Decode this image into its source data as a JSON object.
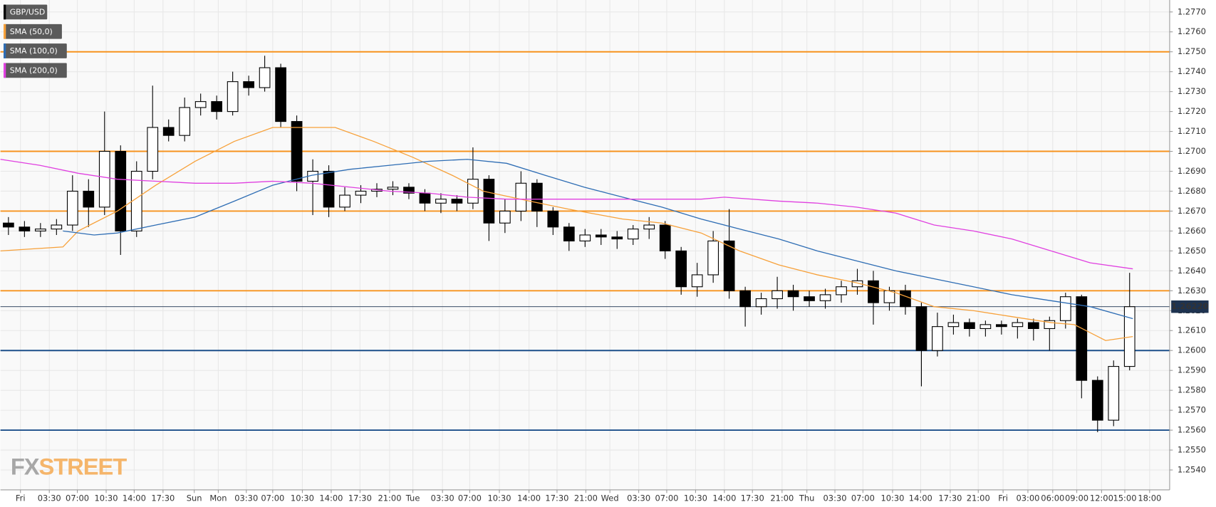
{
  "chart_data": {
    "type": "candlestick",
    "watermark": [
      "FX",
      "STREET"
    ],
    "xlim": [
      0,
      146
    ],
    "xticks": [
      {
        "value": 2.5,
        "label": "Fri"
      },
      {
        "value": 6.1,
        "label": "03:30"
      },
      {
        "value": 9.6,
        "label": "07:00"
      },
      {
        "value": 13.2,
        "label": "10:30"
      },
      {
        "value": 16.7,
        "label": "14:00"
      },
      {
        "value": 20.3,
        "label": "17:30"
      },
      {
        "value": 24.2,
        "label": "Sun"
      },
      {
        "value": 27.2,
        "label": "Mon"
      },
      {
        "value": 30.7,
        "label": "03:30"
      },
      {
        "value": 34.0,
        "label": "07:00"
      },
      {
        "value": 37.7,
        "label": "10:30"
      },
      {
        "value": 41.3,
        "label": "14:00"
      },
      {
        "value": 44.9,
        "label": "17:30"
      },
      {
        "value": 48.6,
        "label": "21:00"
      },
      {
        "value": 51.5,
        "label": "Tue"
      },
      {
        "value": 55.2,
        "label": "03:30"
      },
      {
        "value": 58.6,
        "label": "07:00"
      },
      {
        "value": 62.3,
        "label": "10:30"
      },
      {
        "value": 66.0,
        "label": "14:00"
      },
      {
        "value": 69.5,
        "label": "17:30"
      },
      {
        "value": 73.1,
        "label": "21:00"
      },
      {
        "value": 76.1,
        "label": "Wed"
      },
      {
        "value": 79.7,
        "label": "03:30"
      },
      {
        "value": 83.2,
        "label": "07:00"
      },
      {
        "value": 86.8,
        "label": "10:30"
      },
      {
        "value": 90.4,
        "label": "14:00"
      },
      {
        "value": 93.9,
        "label": "17:30"
      },
      {
        "value": 97.6,
        "label": "21:00"
      },
      {
        "value": 100.7,
        "label": "Thu"
      },
      {
        "value": 104.2,
        "label": "03:30"
      },
      {
        "value": 107.7,
        "label": "07:00"
      },
      {
        "value": 111.4,
        "label": "10:30"
      },
      {
        "value": 114.9,
        "label": "14:00"
      },
      {
        "value": 118.6,
        "label": "17:30"
      },
      {
        "value": 122.1,
        "label": "21:00"
      },
      {
        "value": 125.2,
        "label": "Fri"
      },
      {
        "value": 128.3,
        "label": "03:00"
      },
      {
        "value": 131.4,
        "label": "06:00"
      },
      {
        "value": 134.4,
        "label": "09:00"
      },
      {
        "value": 137.5,
        "label": "12:00"
      },
      {
        "value": 140.4,
        "label": "15:00"
      },
      {
        "value": 143.5,
        "label": "18:00"
      }
    ],
    "ylim": [
      1.253,
      1.2776
    ],
    "yticks": [
      {
        "value": 1.277,
        "label": "1.2770"
      },
      {
        "value": 1.276,
        "label": "1.2760"
      },
      {
        "value": 1.275,
        "label": "1.2750"
      },
      {
        "value": 1.274,
        "label": "1.2740"
      },
      {
        "value": 1.273,
        "label": "1.2730"
      },
      {
        "value": 1.272,
        "label": "1.2720"
      },
      {
        "value": 1.271,
        "label": "1.2710"
      },
      {
        "value": 1.27,
        "label": "1.2700"
      },
      {
        "value": 1.269,
        "label": "1.2690"
      },
      {
        "value": 1.268,
        "label": "1.2680"
      },
      {
        "value": 1.267,
        "label": "1.2670"
      },
      {
        "value": 1.266,
        "label": "1.2660"
      },
      {
        "value": 1.265,
        "label": "1.2650"
      },
      {
        "value": 1.264,
        "label": "1.2640"
      },
      {
        "value": 1.263,
        "label": "1.2630"
      },
      {
        "value": 1.262,
        "label": "1.2620"
      },
      {
        "value": 1.261,
        "label": "1.2610"
      },
      {
        "value": 1.26,
        "label": "1.2600"
      },
      {
        "value": 1.259,
        "label": "1.2590"
      },
      {
        "value": 1.258,
        "label": "1.2580"
      },
      {
        "value": 1.257,
        "label": "1.2570"
      },
      {
        "value": 1.256,
        "label": "1.2560"
      },
      {
        "value": 1.255,
        "label": "1.2550"
      },
      {
        "value": 1.254,
        "label": "1.2540"
      }
    ],
    "grid": true,
    "levels": [
      {
        "value": 1.275,
        "color": "#f7931e"
      },
      {
        "value": 1.27,
        "color": "#f7931e"
      },
      {
        "value": 1.267,
        "color": "#f7931e"
      },
      {
        "value": 1.263,
        "color": "#f7931e"
      },
      {
        "value": 1.26,
        "color": "#1c4f8a"
      },
      {
        "value": 1.256,
        "color": "#1c4f8a"
      }
    ],
    "last_price": {
      "value": 1.2622,
      "label": "1.26220",
      "color": "#1e3350"
    },
    "legend": "top-left",
    "series": [
      {
        "name": "GBP/USD",
        "type": "candlestick",
        "up_color": "#ffffff",
        "down_color": "#000000",
        "x": [
          1,
          3,
          5,
          7,
          9,
          11,
          13,
          15,
          17,
          19,
          21,
          23,
          25,
          27,
          29,
          31,
          33,
          35,
          37,
          39,
          41,
          43,
          45,
          47,
          49,
          51,
          53,
          55,
          57,
          59,
          61,
          63,
          65,
          67,
          69,
          71,
          73,
          75,
          77,
          79,
          81,
          83,
          85,
          87,
          89,
          91,
          93,
          95,
          97,
          99,
          101,
          103,
          105,
          107,
          109,
          111,
          113,
          115,
          117,
          119,
          121,
          123,
          125,
          127,
          129,
          131,
          133,
          135,
          137,
          139,
          141
        ],
        "open": [
          1.2664,
          1.2662,
          1.266,
          1.2661,
          1.2663,
          1.268,
          1.2672,
          1.27,
          1.266,
          1.269,
          1.2712,
          1.2708,
          1.2722,
          1.2725,
          1.272,
          1.2735,
          1.2732,
          1.2742,
          1.2715,
          1.2685,
          1.269,
          1.2672,
          1.2678,
          1.268,
          1.2681,
          1.2682,
          1.2679,
          1.2674,
          1.2676,
          1.2674,
          1.2686,
          1.2664,
          1.267,
          1.2684,
          1.267,
          1.2662,
          1.2655,
          1.2658,
          1.2657,
          1.2656,
          1.2661,
          1.2663,
          1.265,
          1.2632,
          1.2638,
          1.2655,
          1.263,
          1.2622,
          1.2626,
          1.263,
          1.2627,
          1.2625,
          1.2628,
          1.2632,
          1.2635,
          1.2624,
          1.263,
          1.2622,
          1.26,
          1.2612,
          1.2614,
          1.2611,
          1.2613,
          1.2612,
          1.2614,
          1.2611,
          1.2615,
          1.2627,
          1.2585,
          1.2565,
          1.2592
        ],
        "high": [
          1.2667,
          1.2665,
          1.2664,
          1.2666,
          1.2688,
          1.2686,
          1.272,
          1.2703,
          1.2695,
          1.2733,
          1.2716,
          1.2727,
          1.2729,
          1.2728,
          1.274,
          1.2738,
          1.2748,
          1.2744,
          1.2718,
          1.2696,
          1.2693,
          1.2682,
          1.2683,
          1.2684,
          1.2685,
          1.2684,
          1.2681,
          1.2679,
          1.2678,
          1.2702,
          1.2688,
          1.2676,
          1.269,
          1.2686,
          1.2672,
          1.2664,
          1.2661,
          1.2661,
          1.266,
          1.2663,
          1.2667,
          1.2665,
          1.2652,
          1.2644,
          1.266,
          1.2671,
          1.2632,
          1.2629,
          1.2637,
          1.2633,
          1.263,
          1.2631,
          1.2635,
          1.2641,
          1.264,
          1.2632,
          1.2633,
          1.2624,
          1.2619,
          1.2618,
          1.2616,
          1.2615,
          1.2615,
          1.2616,
          1.2616,
          1.2617,
          1.2629,
          1.2628,
          1.2587,
          1.2595,
          1.2639
        ],
        "low": [
          1.2658,
          1.2657,
          1.2657,
          1.2658,
          1.266,
          1.2662,
          1.2668,
          1.2648,
          1.2657,
          1.2686,
          1.2705,
          1.2705,
          1.2718,
          1.2716,
          1.2718,
          1.2728,
          1.273,
          1.2712,
          1.268,
          1.2668,
          1.2667,
          1.267,
          1.2674,
          1.2677,
          1.2678,
          1.2676,
          1.267,
          1.2669,
          1.267,
          1.2671,
          1.2655,
          1.2659,
          1.2665,
          1.2662,
          1.2658,
          1.265,
          1.2652,
          1.2653,
          1.2651,
          1.2653,
          1.2656,
          1.2646,
          1.2628,
          1.2627,
          1.2634,
          1.2626,
          1.2612,
          1.2618,
          1.2621,
          1.262,
          1.2622,
          1.2621,
          1.2624,
          1.2628,
          1.2613,
          1.262,
          1.2618,
          1.2582,
          1.2597,
          1.2608,
          1.2607,
          1.2607,
          1.2608,
          1.2606,
          1.2605,
          1.26,
          1.2611,
          1.2576,
          1.2559,
          1.2562,
          1.259
        ],
        "close": [
          1.2662,
          1.266,
          1.2661,
          1.2663,
          1.268,
          1.2672,
          1.27,
          1.266,
          1.269,
          1.2712,
          1.2708,
          1.2722,
          1.2725,
          1.272,
          1.2735,
          1.2732,
          1.2742,
          1.2715,
          1.2685,
          1.269,
          1.2672,
          1.2678,
          1.268,
          1.2681,
          1.2682,
          1.2679,
          1.2674,
          1.2676,
          1.2674,
          1.2686,
          1.2664,
          1.267,
          1.2684,
          1.267,
          1.2662,
          1.2655,
          1.2658,
          1.2657,
          1.2656,
          1.2661,
          1.2663,
          1.265,
          1.2632,
          1.2638,
          1.2655,
          1.263,
          1.2622,
          1.2626,
          1.263,
          1.2627,
          1.2625,
          1.2628,
          1.2632,
          1.2635,
          1.2624,
          1.263,
          1.2622,
          1.26,
          1.2612,
          1.2614,
          1.2611,
          1.2613,
          1.2612,
          1.2614,
          1.2611,
          1.2615,
          1.2627,
          1.2585,
          1.2565,
          1.2592,
          1.2622
        ]
      },
      {
        "name": "SMA (50,0)",
        "type": "line",
        "color": "#f7a13a",
        "x": [
          0,
          7.8,
          9.7,
          14.6,
          19.4,
          24.3,
          29.2,
          34.0,
          36.9,
          41.8,
          46.6,
          51.5,
          56.4,
          60.3,
          66.1,
          70.9,
          77.7,
          82.6,
          87.5,
          92.3,
          97.2,
          102.0,
          106.9,
          111.8,
          116.6,
          121.5,
          126.3,
          131.2,
          134.1,
          138.0,
          141.4
        ],
        "values": [
          1.265,
          1.2652,
          1.266,
          1.267,
          1.2683,
          1.2695,
          1.2705,
          1.2712,
          1.2712,
          1.2712,
          1.2705,
          1.2697,
          1.2688,
          1.268,
          1.2675,
          1.2671,
          1.2666,
          1.2664,
          1.2659,
          1.265,
          1.2643,
          1.2638,
          1.2634,
          1.2629,
          1.2622,
          1.262,
          1.2617,
          1.2614,
          1.2613,
          1.2605,
          1.2607
        ]
      },
      {
        "name": "SMA (100,0)",
        "type": "line",
        "color": "#2e6db4",
        "x": [
          7.8,
          11.7,
          14.6,
          19.4,
          24.3,
          29.2,
          34.0,
          38.9,
          43.7,
          48.6,
          53.5,
          58.3,
          63.2,
          68.0,
          72.9,
          77.7,
          82.6,
          87.5,
          92.3,
          97.2,
          102.0,
          106.9,
          111.8,
          116.6,
          121.5,
          126.3,
          131.2,
          136.1,
          141.4
        ],
        "values": [
          1.266,
          1.2658,
          1.2659,
          1.2663,
          1.2667,
          1.2675,
          1.2683,
          1.2688,
          1.2691,
          1.2693,
          1.2695,
          1.2696,
          1.2694,
          1.2688,
          1.2682,
          1.2677,
          1.2672,
          1.2666,
          1.2661,
          1.2656,
          1.265,
          1.2645,
          1.264,
          1.2636,
          1.2632,
          1.2628,
          1.2625,
          1.2622,
          1.2616
        ]
      },
      {
        "name": "SMA (200,0)",
        "type": "line",
        "color": "#e040e0",
        "x": [
          0,
          4.9,
          9.7,
          14.6,
          19.4,
          24.3,
          29.2,
          34.0,
          38.9,
          43.7,
          48.6,
          53.5,
          58.3,
          63.2,
          68.0,
          72.9,
          77.7,
          82.6,
          87.5,
          90.4,
          97.2,
          102.0,
          106.9,
          111.8,
          116.6,
          121.5,
          126.3,
          131.2,
          136.1,
          141.4
        ],
        "values": [
          1.2696,
          1.2693,
          1.2689,
          1.2686,
          1.2685,
          1.2684,
          1.2684,
          1.2685,
          1.2684,
          1.2682,
          1.268,
          1.2679,
          1.2677,
          1.2676,
          1.2676,
          1.2676,
          1.2676,
          1.2676,
          1.2676,
          1.2677,
          1.2675,
          1.2674,
          1.2672,
          1.2669,
          1.2663,
          1.266,
          1.2656,
          1.265,
          1.2644,
          1.2641
        ]
      }
    ]
  }
}
